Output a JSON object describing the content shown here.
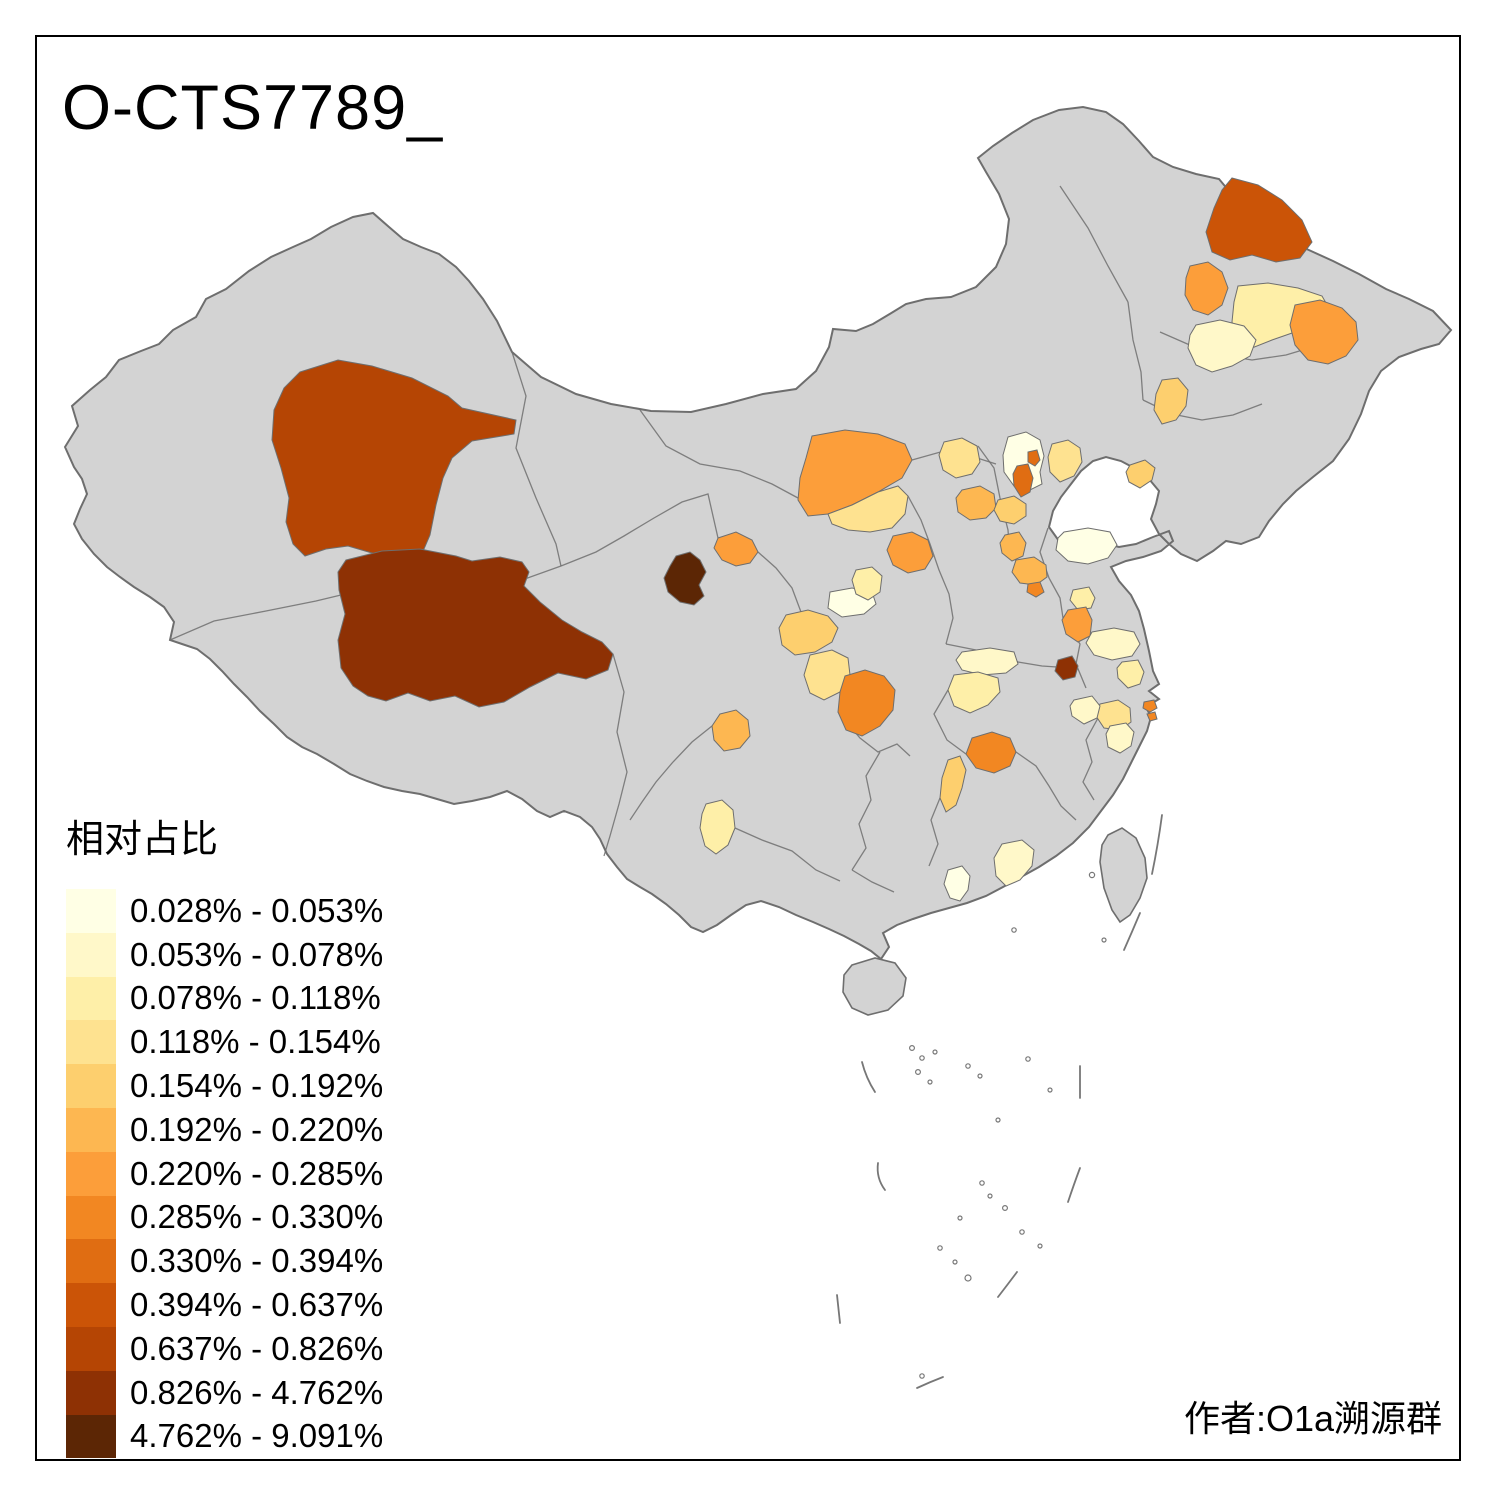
{
  "title": "O-CTS7789_",
  "author": "作者:O1a溯源群",
  "legend": {
    "title": "相对占比",
    "items": [
      {
        "label": "0.028% - 0.053%",
        "color": "#FFFFE5"
      },
      {
        "label": "0.053% - 0.078%",
        "color": "#FFF8C9"
      },
      {
        "label": "0.078% - 0.118%",
        "color": "#FEEFA8"
      },
      {
        "label": "0.118% - 0.154%",
        "color": "#FEE290"
      },
      {
        "label": "0.154% - 0.192%",
        "color": "#FDCF6E"
      },
      {
        "label": "0.192% - 0.220%",
        "color": "#FDB751"
      },
      {
        "label": "0.220% - 0.285%",
        "color": "#FC9E3A"
      },
      {
        "label": "0.285% - 0.330%",
        "color": "#F28722"
      },
      {
        "label": "0.330% - 0.394%",
        "color": "#E06D12"
      },
      {
        "label": "0.394% - 0.637%",
        "color": "#CB5407"
      },
      {
        "label": "0.637% - 0.826%",
        "color": "#B54504"
      },
      {
        "label": "0.826% - 4.762%",
        "color": "#8E3104"
      },
      {
        "label": "4.762% - 9.091%",
        "color": "#5C2605"
      }
    ]
  },
  "map": {
    "land_color": "#D3D3D3",
    "border_color": "#6E6E6E",
    "frame_color": "#000000",
    "background_color": "#FFFFFF",
    "regions": [
      {
        "id": "r01",
        "class": 11
      },
      {
        "id": "r02",
        "class": 12
      },
      {
        "id": "r03",
        "class": 13
      },
      {
        "id": "r04",
        "class": 7
      },
      {
        "id": "r05",
        "class": 10
      },
      {
        "id": "r06",
        "class": 7
      },
      {
        "id": "r07",
        "class": 3
      },
      {
        "id": "r08",
        "class": 7
      },
      {
        "id": "r09",
        "class": 2
      },
      {
        "id": "r10",
        "class": 5
      },
      {
        "id": "r11",
        "class": 7
      },
      {
        "id": "r12",
        "class": 4
      },
      {
        "id": "r13",
        "class": 4
      },
      {
        "id": "r14",
        "class": 1
      },
      {
        "id": "r15",
        "class": 9
      },
      {
        "id": "r16",
        "class": 9
      },
      {
        "id": "r17",
        "class": 4
      },
      {
        "id": "r18",
        "class": 5
      },
      {
        "id": "r19",
        "class": 6
      },
      {
        "id": "r20",
        "class": 5
      },
      {
        "id": "r21",
        "class": 7
      },
      {
        "id": "r22",
        "class": 6
      },
      {
        "id": "r23",
        "class": 6
      },
      {
        "id": "r24",
        "class": 8
      },
      {
        "id": "r25",
        "class": 1
      },
      {
        "id": "r26",
        "class": 3
      },
      {
        "id": "r27",
        "class": 7
      },
      {
        "id": "r28",
        "class": 2
      },
      {
        "id": "r29",
        "class": 3
      },
      {
        "id": "r30",
        "class": 1
      },
      {
        "id": "r31",
        "class": 3
      },
      {
        "id": "r32",
        "class": 5
      },
      {
        "id": "r33",
        "class": 4
      },
      {
        "id": "r34",
        "class": 8
      },
      {
        "id": "r35",
        "class": 6
      },
      {
        "id": "r36",
        "class": 8
      },
      {
        "id": "r37",
        "class": 5
      },
      {
        "id": "r38",
        "class": 4
      },
      {
        "id": "r39",
        "class": 2
      },
      {
        "id": "r40",
        "class": 2
      },
      {
        "id": "r41",
        "class": 2
      },
      {
        "id": "r42",
        "class": 3
      },
      {
        "id": "r43",
        "class": 12
      },
      {
        "id": "r44",
        "class": 8
      },
      {
        "id": "r45",
        "class": 3
      },
      {
        "id": "r46",
        "class": 2
      },
      {
        "id": "r47",
        "class": 1
      }
    ]
  }
}
